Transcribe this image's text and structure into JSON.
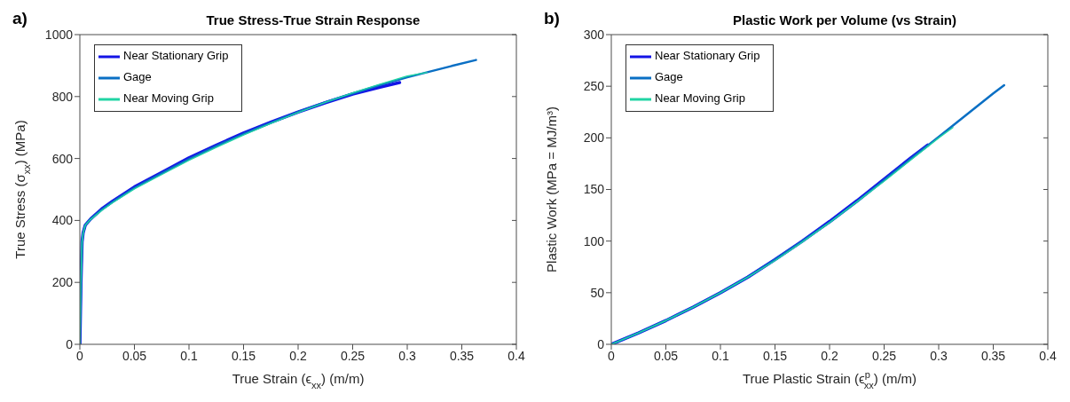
{
  "chart_data": [
    {
      "type": "line",
      "title": "True Stress-True Strain Response",
      "xlabel": "True Strain (ϵ$_{xx}$) (m/m)",
      "ylabel": "True Stress (σ$_{xx}$) (MPa)",
      "annotations": [
        "a)"
      ],
      "xlim": [
        0,
        0.4
      ],
      "xticks": [
        0,
        0.05,
        0.1,
        0.15,
        0.2,
        0.25,
        0.3,
        0.35,
        0.4
      ],
      "ylim": [
        0,
        1000
      ],
      "yticks": [
        0,
        200,
        400,
        600,
        800,
        1000
      ],
      "grid": false,
      "legend": "top left",
      "marker": "none",
      "line_style": "solid",
      "series": [
        {
          "name": "Near Stationary Grip",
          "color": "#1414e6",
          "x": [
            0,
            0.001,
            0.002,
            0.003,
            0.005,
            0.01,
            0.02,
            0.03,
            0.05,
            0.075,
            0.1,
            0.125,
            0.15,
            0.175,
            0.2,
            0.225,
            0.25,
            0.275,
            0.293
          ],
          "values": [
            0,
            200,
            330,
            360,
            385,
            405,
            437,
            462,
            508,
            555,
            602,
            643,
            682,
            717,
            750,
            780,
            808,
            830,
            845
          ]
        },
        {
          "name": "Gage",
          "color": "#0a6fc4",
          "x": [
            0,
            0.001,
            0.002,
            0.003,
            0.005,
            0.01,
            0.02,
            0.03,
            0.05,
            0.075,
            0.1,
            0.125,
            0.15,
            0.175,
            0.2,
            0.225,
            0.25,
            0.275,
            0.3,
            0.32,
            0.34,
            0.363
          ],
          "values": [
            0,
            200,
            330,
            360,
            385,
            405,
            435,
            460,
            505,
            552,
            598,
            640,
            679,
            715,
            750,
            782,
            810,
            837,
            862,
            880,
            898,
            918
          ]
        },
        {
          "name": "Near Moving Grip",
          "color": "#20d4a4",
          "x": [
            0,
            0.001,
            0.002,
            0.003,
            0.005,
            0.01,
            0.02,
            0.03,
            0.05,
            0.075,
            0.1,
            0.125,
            0.15,
            0.175,
            0.2,
            0.225,
            0.25,
            0.275,
            0.3,
            0.318
          ],
          "values": [
            0,
            200,
            330,
            360,
            385,
            403,
            432,
            457,
            502,
            548,
            594,
            636,
            676,
            713,
            748,
            781,
            812,
            840,
            866,
            878
          ]
        }
      ]
    },
    {
      "type": "line",
      "title": "Plastic Work per Volume (vs Strain)",
      "xlabel": "True Plastic Strain (ϵ$^{p}$$_{xx}$) (m/m)",
      "ylabel": "Plastic Work (MPa = MJ/m³)",
      "annotations": [
        "b)"
      ],
      "xlim": [
        0,
        0.4
      ],
      "xticks": [
        0,
        0.05,
        0.1,
        0.15,
        0.2,
        0.25,
        0.3,
        0.35,
        0.4
      ],
      "ylim": [
        0,
        300
      ],
      "yticks": [
        0,
        50,
        100,
        150,
        200,
        250,
        300
      ],
      "grid": false,
      "legend": "top left",
      "marker": "none",
      "line_style": "solid",
      "series": [
        {
          "name": "Near Stationary Grip",
          "color": "#1414e6",
          "x": [
            0,
            0.025,
            0.05,
            0.075,
            0.1,
            0.125,
            0.15,
            0.175,
            0.2,
            0.225,
            0.25,
            0.275,
            0.29
          ],
          "values": [
            0,
            11,
            23,
            36,
            50,
            65,
            82,
            100,
            119,
            139,
            160,
            181,
            193
          ]
        },
        {
          "name": "Gage",
          "color": "#0a6fc4",
          "x": [
            0,
            0.025,
            0.05,
            0.075,
            0.1,
            0.125,
            0.15,
            0.175,
            0.2,
            0.225,
            0.25,
            0.275,
            0.3,
            0.325,
            0.35,
            0.36
          ],
          "values": [
            0,
            11,
            23,
            36,
            50,
            65,
            82,
            100,
            118,
            138,
            159,
            180,
            201,
            222,
            243,
            251
          ]
        },
        {
          "name": "Near Moving Grip",
          "color": "#20d4a4",
          "x": [
            0,
            0.025,
            0.05,
            0.075,
            0.1,
            0.125,
            0.15,
            0.175,
            0.2,
            0.225,
            0.25,
            0.275,
            0.3,
            0.313
          ],
          "values": [
            0,
            11,
            23,
            36,
            50,
            65,
            81,
            99,
            118,
            138,
            158,
            179,
            200,
            210
          ]
        }
      ]
    }
  ]
}
